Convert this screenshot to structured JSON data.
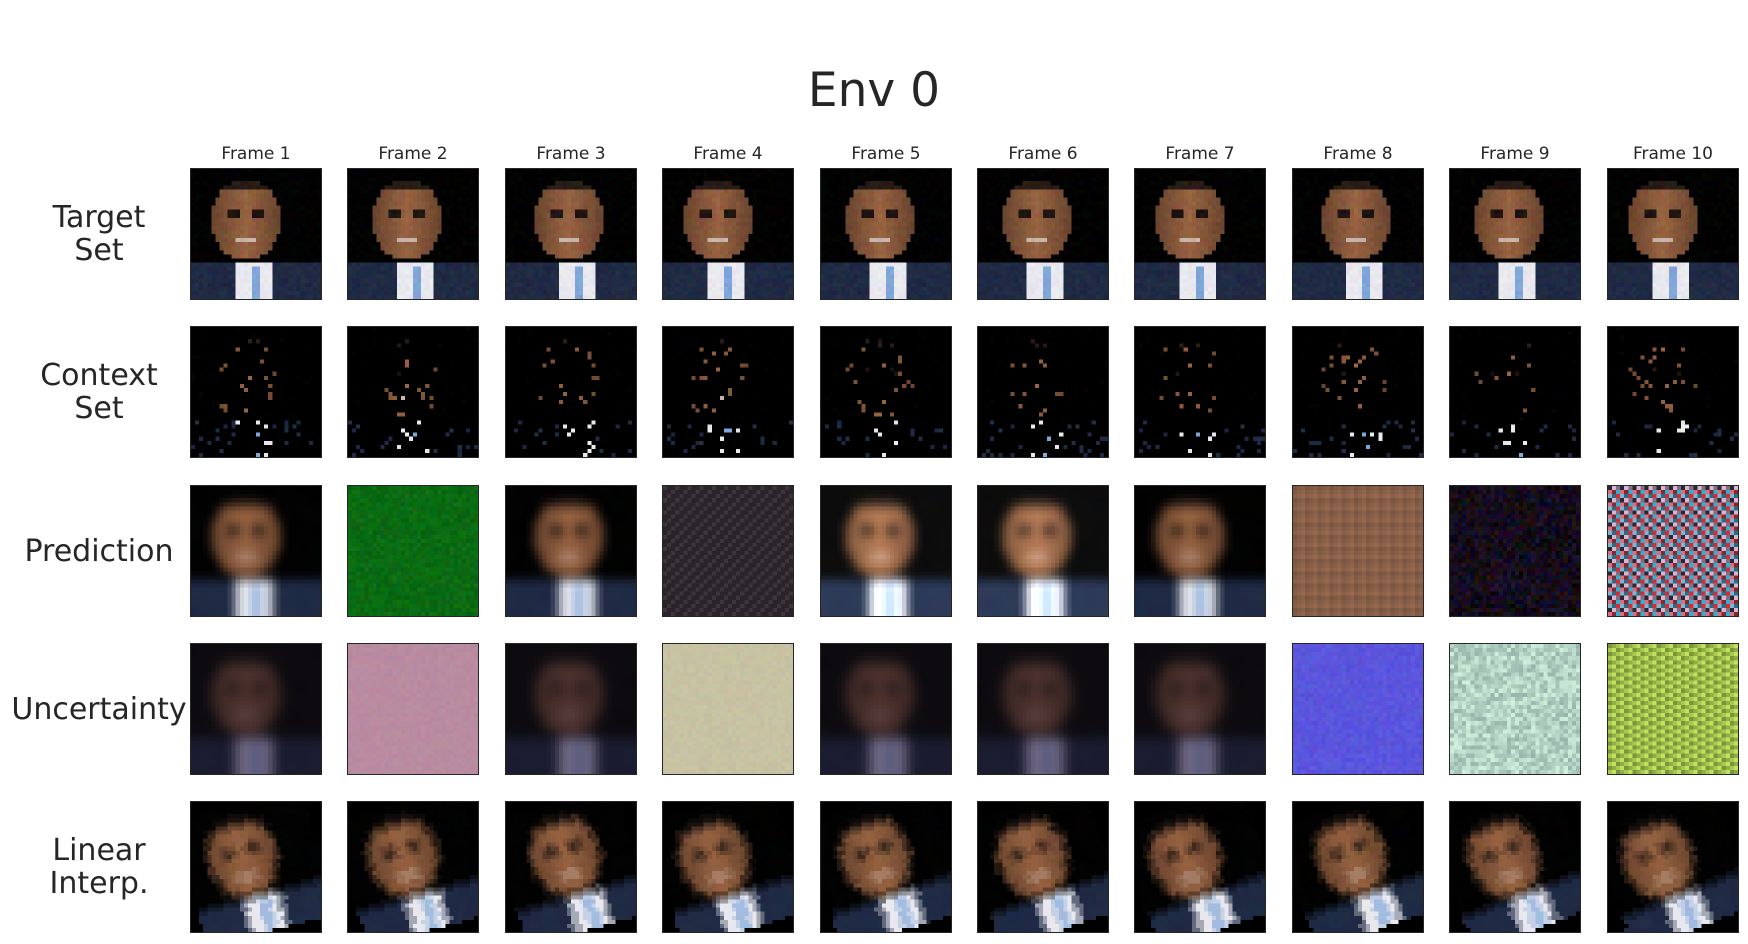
{
  "title": "Env 0",
  "columns": [
    "Frame 1",
    "Frame 2",
    "Frame 3",
    "Frame 4",
    "Frame 5",
    "Frame 6",
    "Frame 7",
    "Frame 8",
    "Frame 9",
    "Frame 10"
  ],
  "rows": [
    {
      "key": "target",
      "label": "Target\nSet"
    },
    {
      "key": "context",
      "label": "Context\nSet"
    },
    {
      "key": "prediction",
      "label": "Prediction"
    },
    {
      "key": "uncertainty",
      "label": "Uncertainty"
    },
    {
      "key": "linear",
      "label": "Linear\nInterp."
    }
  ],
  "prediction_styles": [
    "face",
    "uniform-green",
    "face",
    "dark-grid",
    "face-light",
    "face-light",
    "face",
    "brown-grid",
    "dark-noise",
    "rainbow-grid"
  ],
  "uncertainty_styles": [
    "dark-blob",
    "uniform-pink",
    "dark-blob",
    "uniform-beige",
    "dark-blob",
    "dark-blob",
    "dark-blob",
    "uniform-blue",
    "mint-noise",
    "green-grid"
  ],
  "colors": {
    "background": "#000000",
    "skin": "#8a5a3c",
    "suit": "#1f2a44",
    "shirt": "#e8e8ee",
    "tie": "#7fa6d8",
    "green": "#0a6a12",
    "pink": "#b98ba0",
    "beige": "#c7c2a3",
    "blue": "#5a55dd"
  }
}
